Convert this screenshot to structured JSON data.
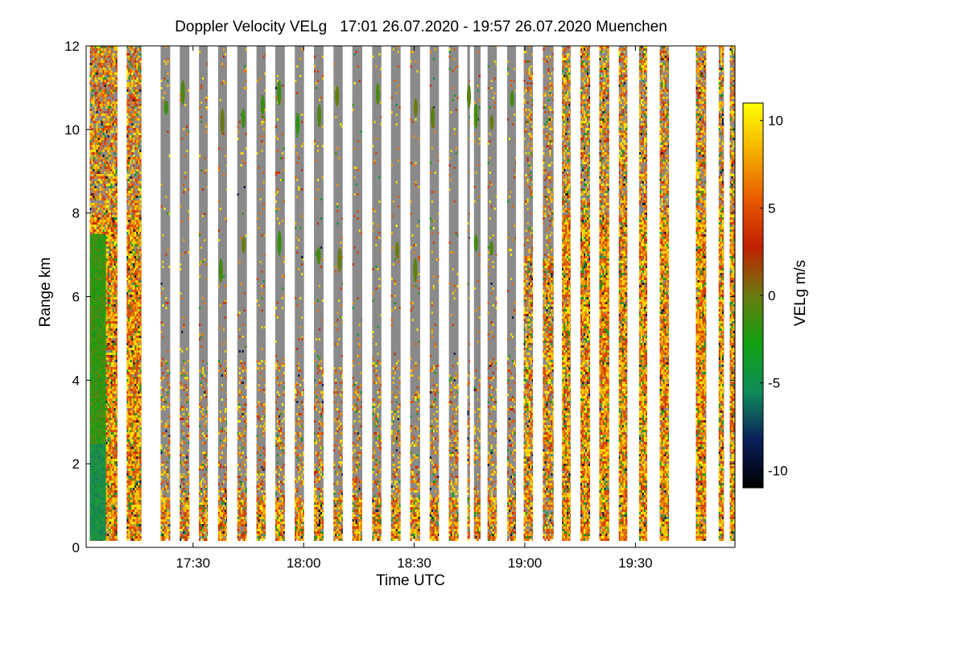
{
  "chart_data": {
    "type": "heatmap",
    "title": "Doppler Velocity VELg   17:01 26.07.2020 - 19:57 26.07.2020 Muenchen",
    "xlabel": "Time UTC",
    "ylabel": "Range km",
    "x_range_minutes_of_day": [
      1021,
      1197
    ],
    "x_ticks": [
      {
        "minute": 1050,
        "label": "17:30"
      },
      {
        "minute": 1080,
        "label": "18:00"
      },
      {
        "minute": 1110,
        "label": "18:30"
      },
      {
        "minute": 1140,
        "label": "19:00"
      },
      {
        "minute": 1170,
        "label": "19:30"
      }
    ],
    "ylim": [
      0,
      12
    ],
    "y_ticks": [
      0,
      2,
      4,
      6,
      8,
      10,
      12
    ],
    "colorbar": {
      "label": "VELg m/s",
      "range": [
        -11,
        11
      ],
      "ticks": [
        10,
        5,
        0,
        -5,
        -10
      ],
      "colors": [
        "#000000",
        "#0a1e5a",
        "#0f8c5a",
        "#10a010",
        "#6b7a10",
        "#c02000",
        "#e85a00",
        "#f5b000",
        "#ffff00"
      ]
    },
    "missing_color": "#8a8a8a",
    "scans": [
      {
        "start": 1022.0,
        "end": 1029.5,
        "top": 12,
        "kind": "strong"
      },
      {
        "start": 1032.0,
        "end": 1036.0,
        "top": 12,
        "kind": "strong"
      },
      {
        "start": 1041.2,
        "end": 1043.8,
        "top": 12,
        "kind": "weak"
      },
      {
        "start": 1046.4,
        "end": 1049.0,
        "top": 12,
        "kind": "weak"
      },
      {
        "start": 1051.6,
        "end": 1054.0,
        "top": 12,
        "kind": "weak"
      },
      {
        "start": 1056.8,
        "end": 1059.2,
        "top": 12,
        "kind": "weak"
      },
      {
        "start": 1062.0,
        "end": 1064.6,
        "top": 12,
        "kind": "weak"
      },
      {
        "start": 1067.2,
        "end": 1069.7,
        "top": 12,
        "kind": "weak"
      },
      {
        "start": 1072.3,
        "end": 1074.9,
        "top": 12,
        "kind": "weak"
      },
      {
        "start": 1077.6,
        "end": 1080.1,
        "top": 12,
        "kind": "weak"
      },
      {
        "start": 1082.8,
        "end": 1085.4,
        "top": 12,
        "kind": "weak"
      },
      {
        "start": 1088.1,
        "end": 1090.6,
        "top": 12,
        "kind": "weak"
      },
      {
        "start": 1093.2,
        "end": 1095.9,
        "top": 12,
        "kind": "weak"
      },
      {
        "start": 1098.6,
        "end": 1101.1,
        "top": 12,
        "kind": "weak"
      },
      {
        "start": 1103.7,
        "end": 1106.3,
        "top": 12,
        "kind": "weak"
      },
      {
        "start": 1108.9,
        "end": 1111.6,
        "top": 12,
        "kind": "weak"
      },
      {
        "start": 1114.2,
        "end": 1116.7,
        "top": 12,
        "kind": "weak"
      },
      {
        "start": 1119.4,
        "end": 1122.0,
        "top": 12,
        "kind": "weak"
      },
      {
        "start": 1124.4,
        "end": 1125.1,
        "top": 12,
        "kind": "weak"
      },
      {
        "start": 1126.2,
        "end": 1128.0,
        "top": 12,
        "kind": "weak"
      },
      {
        "start": 1129.9,
        "end": 1132.4,
        "top": 12,
        "kind": "weak"
      },
      {
        "start": 1135.2,
        "end": 1137.6,
        "top": 12,
        "kind": "weak"
      },
      {
        "start": 1139.7,
        "end": 1142.2,
        "top": 12,
        "kind": "mixed"
      },
      {
        "start": 1144.9,
        "end": 1147.8,
        "top": 12,
        "kind": "mixed"
      },
      {
        "start": 1150.1,
        "end": 1152.4,
        "top": 12,
        "kind": "strong"
      },
      {
        "start": 1155.1,
        "end": 1157.7,
        "top": 12,
        "kind": "strong"
      },
      {
        "start": 1160.2,
        "end": 1162.9,
        "top": 12,
        "kind": "strong"
      },
      {
        "start": 1165.5,
        "end": 1167.8,
        "top": 12,
        "kind": "strong"
      },
      {
        "start": 1171.0,
        "end": 1173.2,
        "top": 12,
        "kind": "strong"
      },
      {
        "start": 1176.6,
        "end": 1179.1,
        "top": 12,
        "kind": "strong"
      },
      {
        "start": 1186.4,
        "end": 1189.2,
        "top": 12,
        "kind": "strong"
      },
      {
        "start": 1192.6,
        "end": 1194.0,
        "top": 12,
        "kind": "strong"
      },
      {
        "start": 1195.6,
        "end": 1197.0,
        "top": 12,
        "kind": "strong"
      }
    ]
  }
}
